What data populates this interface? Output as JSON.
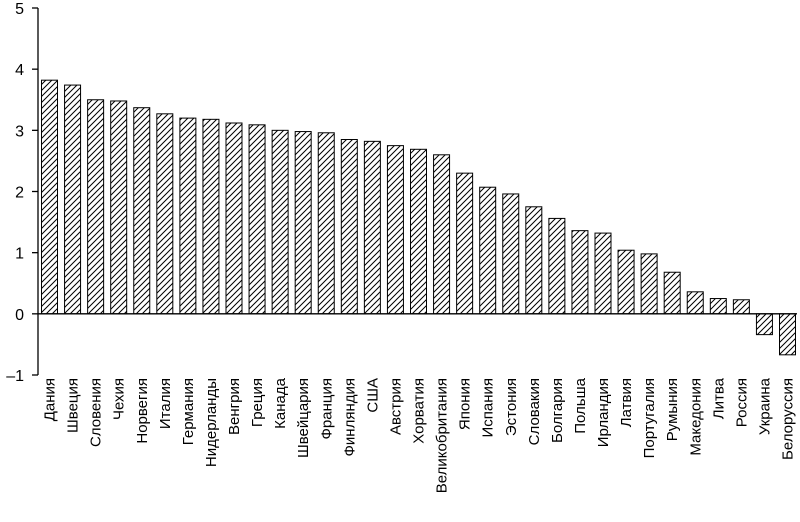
{
  "chart_data": {
    "type": "bar",
    "title": "",
    "xlabel": "",
    "ylabel": "",
    "ylim": [
      -1,
      5
    ],
    "yticks": [
      5,
      4,
      3,
      2,
      1,
      0,
      -1
    ],
    "ytick_labels": [
      "5",
      "4",
      "3",
      "2",
      "1",
      "0",
      "–1"
    ],
    "grid": false,
    "legend": "none",
    "bar_fill": "diagonal-hatch",
    "colors": {
      "bar_edge": "#000000",
      "hatch": "#000000",
      "background": "#ffffff"
    },
    "categories": [
      "Дания",
      "Швеция",
      "Словения",
      "Чехия",
      "Норвегия",
      "Италия",
      "Германия",
      "Нидерланды",
      "Венгрия",
      "Греция",
      "Канада",
      "Швейцария",
      "Франция",
      "Финляндия",
      "США",
      "Австрия",
      "Хорватия",
      "Великобритания",
      "Япония",
      "Испания",
      "Эстония",
      "Словакия",
      "Болгария",
      "Польша",
      "Ирландия",
      "Латвия",
      "Португалия",
      "Румыния",
      "Македония",
      "Литва",
      "Россия",
      "Украина",
      "Белоруссия"
    ],
    "values": [
      3.82,
      3.74,
      3.5,
      3.48,
      3.37,
      3.27,
      3.2,
      3.18,
      3.12,
      3.09,
      3.0,
      2.98,
      2.96,
      2.85,
      2.82,
      2.75,
      2.69,
      2.6,
      2.3,
      2.07,
      1.96,
      1.75,
      1.56,
      1.36,
      1.32,
      1.04,
      0.98,
      0.68,
      0.36,
      0.25,
      0.23,
      -0.34,
      -0.67
    ]
  }
}
